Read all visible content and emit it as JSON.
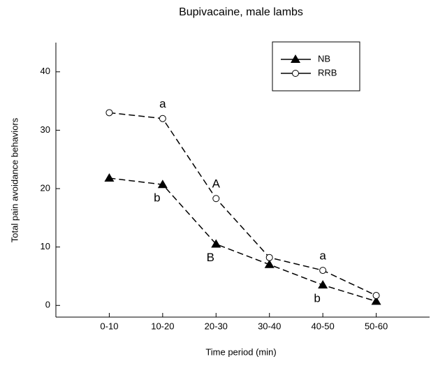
{
  "chart_data": {
    "type": "line",
    "title": "Bupivacaine, male lambs",
    "x_label": "Time period (min)",
    "y_label": "Total pain avoidance behaviors",
    "categories": [
      "0-10",
      "10-20",
      "20-30",
      "30-40",
      "40-50",
      "50-60"
    ],
    "series": [
      {
        "name": "NB",
        "color": "#000000",
        "marker": "triangle",
        "values": [
          21.8,
          20.7,
          10.5,
          7.0,
          3.5,
          0.7
        ]
      },
      {
        "name": "RRB",
        "color": "#000000",
        "marker": "circle",
        "values": [
          33.0,
          32.0,
          18.3,
          8.2,
          6.0,
          1.7
        ]
      }
    ],
    "annotations": [
      {
        "text": "a",
        "series": "RRB",
        "category": "10-20"
      },
      {
        "text": "b",
        "series": "NB",
        "category": "10-20"
      },
      {
        "text": "A",
        "series": "RRB",
        "category": "20-30"
      },
      {
        "text": "B",
        "series": "NB",
        "category": "20-30"
      },
      {
        "text": "a",
        "series": "RRB",
        "category": "40-50"
      },
      {
        "text": "b",
        "series": "NB",
        "category": "40-50"
      }
    ],
    "ylim": [
      -2,
      45
    ],
    "yticks": [
      0,
      10,
      20,
      30,
      40
    ],
    "line_style": "dashed",
    "legend": "upper right"
  }
}
